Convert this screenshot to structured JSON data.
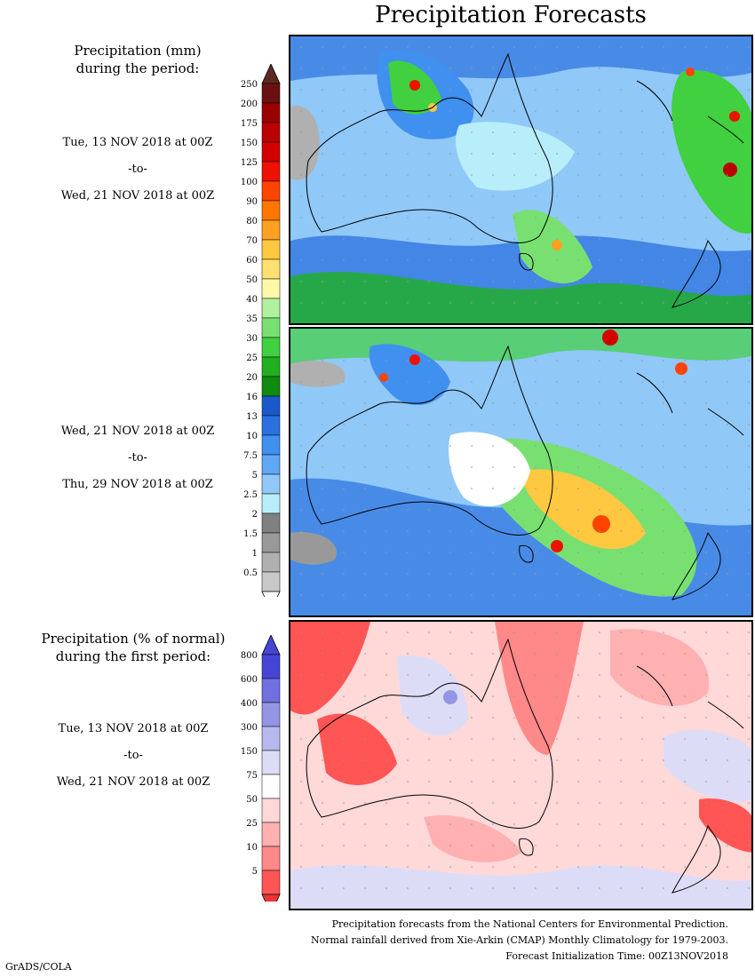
{
  "title": "Precipitation Forecasts",
  "panel1": {
    "heading_line1": "Precipitation (mm)",
    "heading_line2": "during the period:",
    "start": "Tue, 13 NOV 2018 at 00Z",
    "to": "-to-",
    "end": "Wed, 21 NOV 2018 at 00Z"
  },
  "panel2": {
    "start": "Wed, 21 NOV 2018 at 00Z",
    "to": "-to-",
    "end": "Thu, 29 NOV 2018 at 00Z"
  },
  "panel3": {
    "heading_line1": "Precipitation (% of normal)",
    "heading_line2": "during the first period:",
    "start": "Tue, 13 NOV 2018 at 00Z",
    "to": "-to-",
    "end": "Wed, 21 NOV 2018 at 00Z"
  },
  "legend_mm": {
    "labels": [
      "250",
      "200",
      "175",
      "150",
      "125",
      "100",
      "90",
      "80",
      "70",
      "60",
      "50",
      "40",
      "35",
      "30",
      "25",
      "20",
      "16",
      "13",
      "10",
      "7.5",
      "5",
      "2.5",
      "2",
      "1.5",
      "1",
      "0.5"
    ],
    "colors": [
      "#6b1010",
      "#9a0000",
      "#bb0000",
      "#d40000",
      "#ee1100",
      "#ff4400",
      "#ff7700",
      "#ffa020",
      "#ffc840",
      "#ffe070",
      "#fff8a8",
      "#b0f0a0",
      "#78e070",
      "#40d040",
      "#20b020",
      "#108a10",
      "#1a5ac8",
      "#2a70e0",
      "#4090f0",
      "#60a8f5",
      "#90c8f8",
      "#b8eefa",
      "#808080",
      "#999999",
      "#b0b0b0",
      "#c8c8c8"
    ]
  },
  "legend_pct": {
    "labels": [
      "800",
      "600",
      "400",
      "300",
      "150",
      "75",
      "50",
      "25",
      "10",
      "5"
    ],
    "colors": [
      "#4545d5",
      "#7070e0",
      "#9595e5",
      "#b8b8ee",
      "#dcdcf7",
      "#ffffff",
      "#ffd8d8",
      "#ffb0b0",
      "#ff8888",
      "#ff5555"
    ]
  },
  "footer": {
    "line1": "Precipitation forecasts from the National Centers for Environmental Prediction.",
    "line2": "Normal rainfall derived from Xie-Arkin (CMAP) Monthly Climatology for 1979-2003.",
    "line3": "Forecast Initialization Time: 00Z13NOV2018"
  },
  "credit": "GrADS/COLA"
}
